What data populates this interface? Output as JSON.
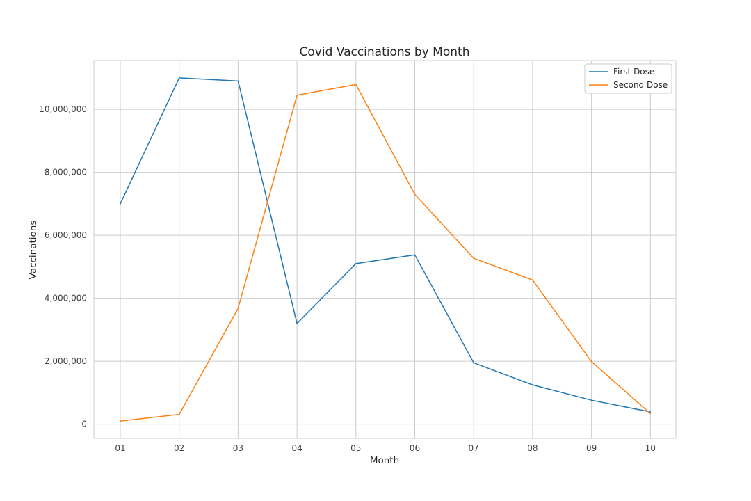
{
  "chart_data": {
    "type": "line",
    "title": "Covid Vaccinations by Month",
    "xlabel": "Month",
    "ylabel": "Vaccinations",
    "categories": [
      "01",
      "02",
      "03",
      "04",
      "05",
      "06",
      "07",
      "08",
      "09",
      "10"
    ],
    "yticks": [
      0,
      2000000,
      4000000,
      6000000,
      8000000,
      10000000
    ],
    "ytick_labels": [
      "0",
      "2,000,000",
      "4,000,000",
      "6,000,000",
      "8,000,000",
      "10,000,000"
    ],
    "ylim": [
      -450000,
      11550000
    ],
    "grid": true,
    "legend_position": "top-right",
    "series": [
      {
        "name": "First Dose",
        "color": "#1f77b4",
        "values": [
          7000000,
          11000000,
          10900000,
          3200000,
          5100000,
          5380000,
          1950000,
          1250000,
          760000,
          390000
        ]
      },
      {
        "name": "Second Dose",
        "color": "#ff7f0e",
        "values": [
          100000,
          310000,
          3680000,
          10450000,
          10790000,
          7300000,
          5270000,
          4580000,
          1990000,
          340000
        ]
      }
    ]
  }
}
